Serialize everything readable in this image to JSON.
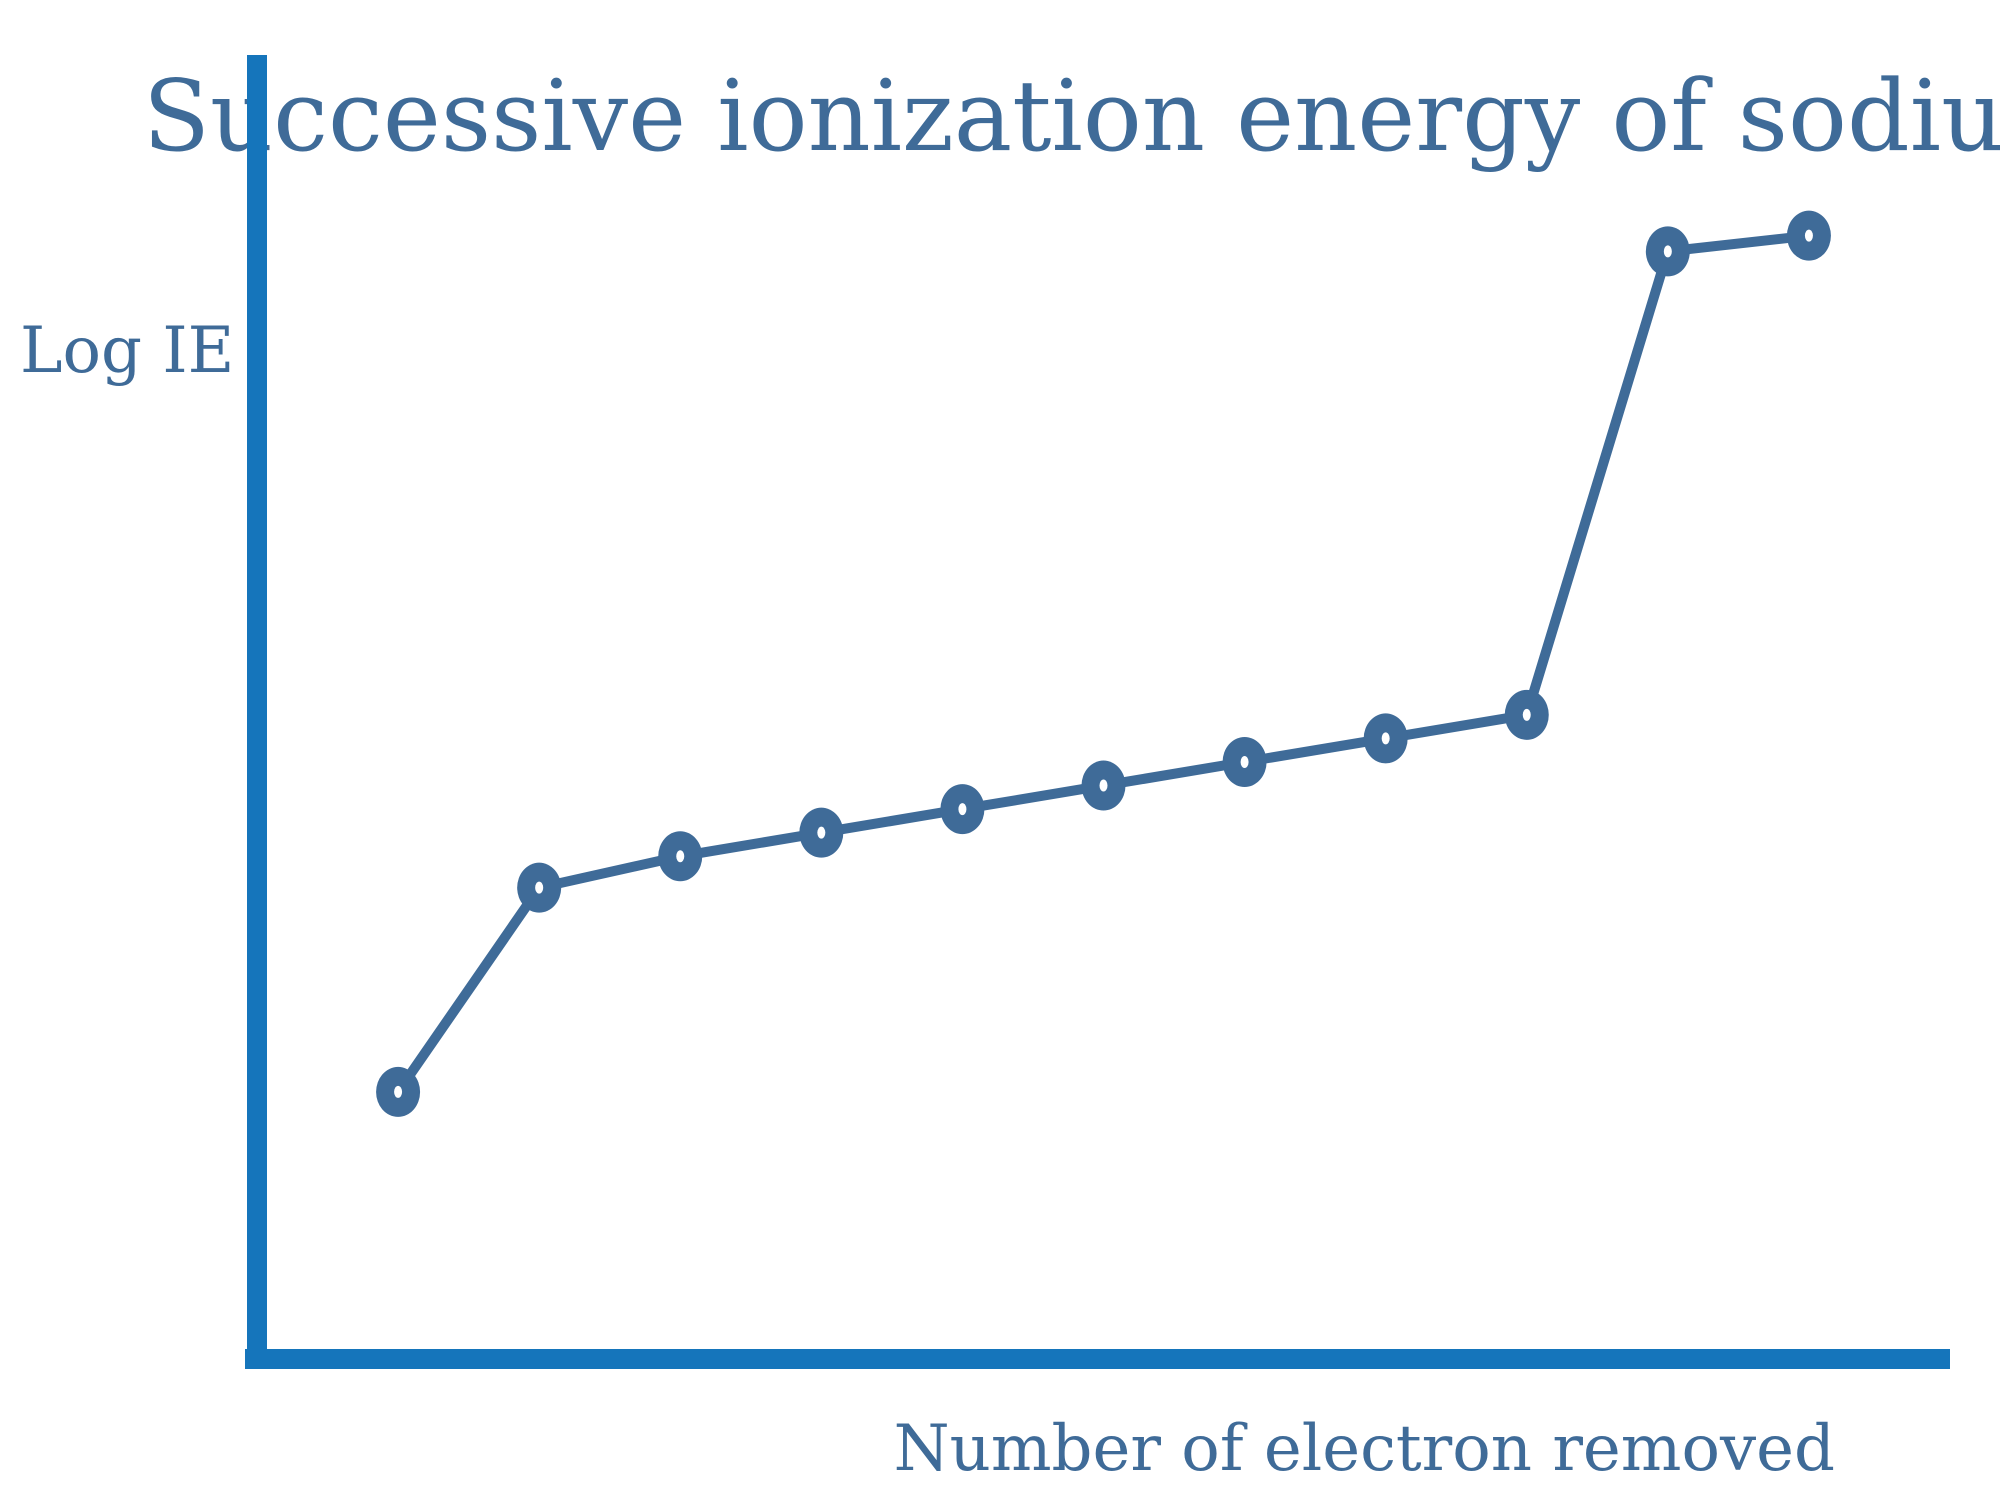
{
  "chart_data": {
    "type": "line",
    "title": "Successive ionization energy of sodium",
    "xlabel": "Number of electron removed",
    "ylabel": "Log IE",
    "x": [
      1,
      2,
      3,
      4,
      5,
      6,
      7,
      8,
      9,
      10,
      11
    ],
    "series": [
      {
        "values": [
          0.7,
          2.0,
          2.2,
          2.35,
          2.5,
          2.65,
          2.8,
          2.95,
          3.1,
          6.05,
          6.15
        ]
      }
    ],
    "xlim": [
      0,
      12
    ],
    "ylim": [
      -1.0,
      7.3
    ],
    "grid": false,
    "legend": "none",
    "colors": {
      "axis": "#1575bb",
      "series": "#3f6b98",
      "text": "#3f6b98"
    }
  }
}
